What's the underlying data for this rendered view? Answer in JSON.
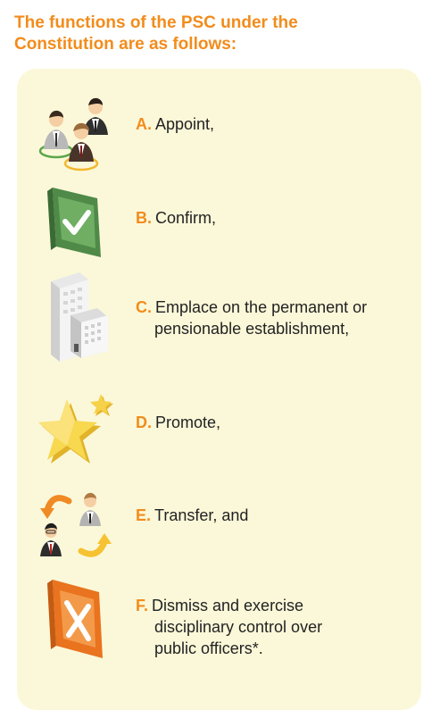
{
  "heading": {
    "line1": "The functions of the PSC under the",
    "line2": "Constitution are as follows:"
  },
  "colors": {
    "accent": "#f28c1c",
    "panel_background": "#fbf8d9",
    "text": "#222222"
  },
  "items": [
    {
      "letter": "A.",
      "lines": [
        "Appoint,"
      ],
      "icon": "people-group-icon"
    },
    {
      "letter": "B.",
      "lines": [
        "Confirm,"
      ],
      "icon": "checkmark-box-icon"
    },
    {
      "letter": "C.",
      "lines": [
        "Emplace on the permanent or",
        "pensionable establishment,"
      ],
      "icon": "office-building-icon"
    },
    {
      "letter": "D.",
      "lines": [
        "Promote,"
      ],
      "icon": "stars-icon"
    },
    {
      "letter": "E.",
      "lines": [
        "Transfer, and"
      ],
      "icon": "transfer-people-icon"
    },
    {
      "letter": "F.",
      "lines": [
        "Dismiss and exercise",
        "disciplinary control over",
        "public officers*."
      ],
      "icon": "x-box-icon"
    }
  ]
}
